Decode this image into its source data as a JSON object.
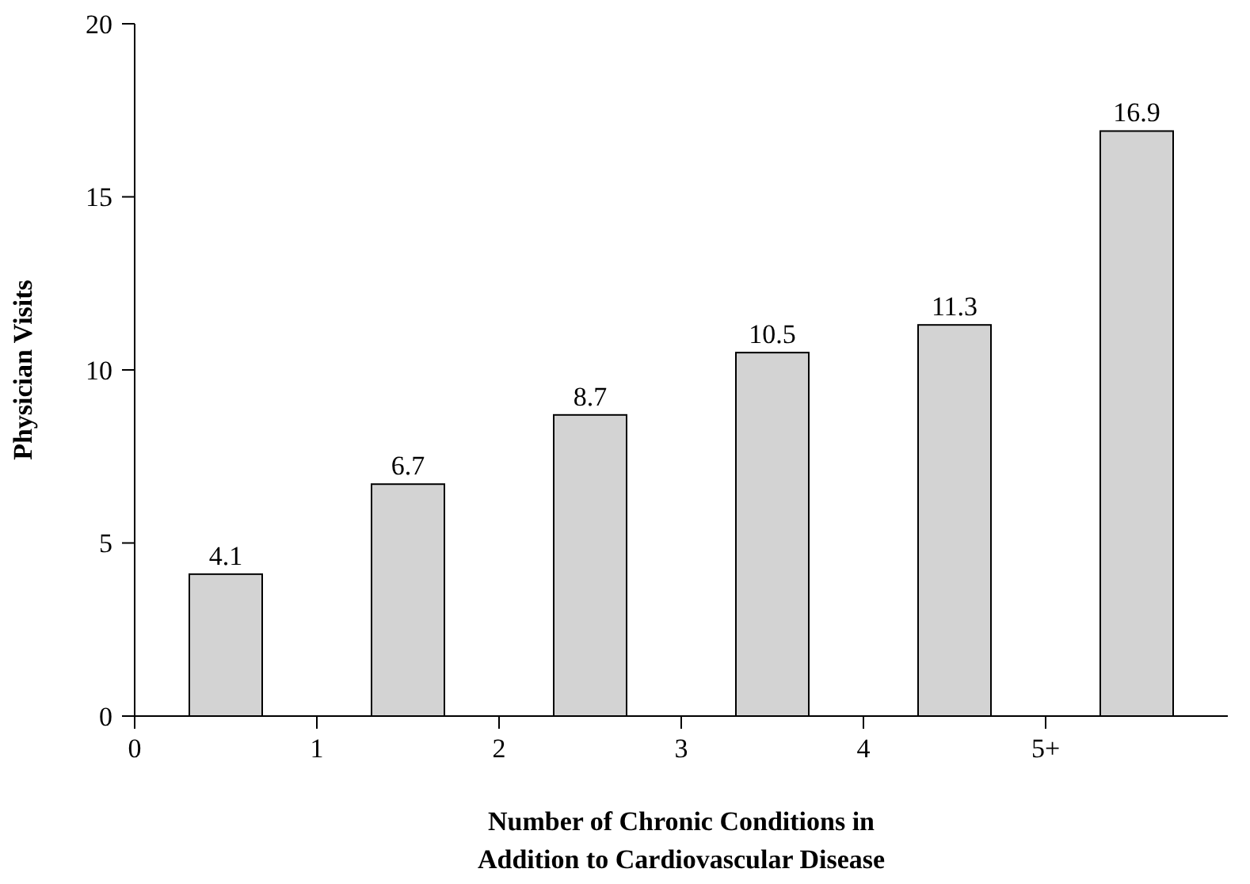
{
  "chart_data": {
    "type": "bar",
    "xlabel": "Number of Chronic Conditions in\nAddition to Cardiovascular Disease",
    "ylabel": "Physician Visits",
    "x": [
      0.5,
      1.5,
      2.5,
      3.5,
      4.5,
      5.5
    ],
    "values": [
      4.1,
      6.7,
      8.7,
      10.5,
      11.3,
      16.9
    ],
    "color": "#d3d3d3",
    "data_labels": true,
    "xlim": [
      0,
      6
    ],
    "xticks": [
      0,
      1,
      2,
      3,
      4,
      {
        "value": 5,
        "label": "5+"
      }
    ],
    "ylim": [
      0,
      20
    ],
    "yticks": [
      0,
      5,
      10,
      15,
      20
    ],
    "grid": false
  }
}
